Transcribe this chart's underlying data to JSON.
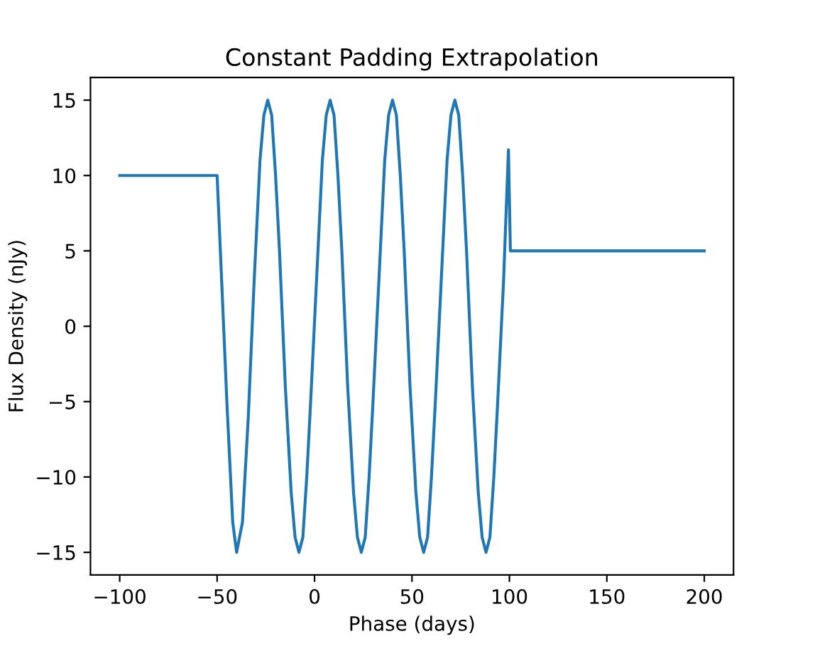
{
  "chart_data": {
    "type": "line",
    "title": "Constant Padding Extrapolation",
    "xlabel": "Phase (days)",
    "ylabel": "Flux Density (nJy)",
    "series": [
      {
        "color": "#1f77b4",
        "x": [
          -100,
          -50,
          -48,
          -45,
          -42,
          -40,
          -37,
          -34,
          -31,
          -28,
          -26,
          -24,
          -22,
          -20,
          -18,
          -15,
          -12,
          -10,
          -8,
          -6,
          -4,
          -2,
          1,
          4,
          6,
          8,
          10,
          12,
          14,
          17,
          20,
          22,
          24,
          26,
          28,
          30,
          33,
          36,
          38,
          40,
          42,
          44,
          46,
          49,
          52,
          54,
          56,
          58,
          60,
          62,
          65,
          68,
          70,
          72,
          74,
          76,
          78,
          81,
          84,
          86,
          88,
          90,
          92,
          94,
          97,
          99.5,
          100.5,
          200
        ],
        "values": [
          10,
          10,
          4,
          -5,
          -13,
          -15,
          -13,
          -6,
          3,
          11,
          14,
          15,
          14,
          10,
          5,
          -4,
          -11,
          -14,
          -15,
          -14,
          -10,
          -5,
          3,
          11,
          14,
          15,
          14,
          10,
          5,
          -4,
          -11,
          -14,
          -15,
          -14,
          -10,
          -5,
          3,
          11,
          14,
          15,
          14,
          10,
          5,
          -4,
          -11,
          -14,
          -15,
          -14,
          -10,
          -5,
          3,
          11,
          14,
          15,
          14,
          10,
          5,
          -4,
          -11,
          -14,
          -15,
          -14,
          -10,
          -5,
          3,
          11.7,
          5,
          5
        ]
      }
    ],
    "xlim": [
      -115,
      215
    ],
    "ylim": [
      -16.5,
      16.5
    ],
    "xticks": [
      {
        "value": -100,
        "label": "−100"
      },
      {
        "value": -50,
        "label": "−50"
      },
      0,
      50,
      100,
      150,
      200
    ],
    "yticks": [
      {
        "value": -15,
        "label": "−15"
      },
      {
        "value": -10,
        "label": "−10"
      },
      {
        "value": -5,
        "label": "−5"
      },
      0,
      5,
      10,
      15
    ],
    "grid": false,
    "legend": false
  }
}
